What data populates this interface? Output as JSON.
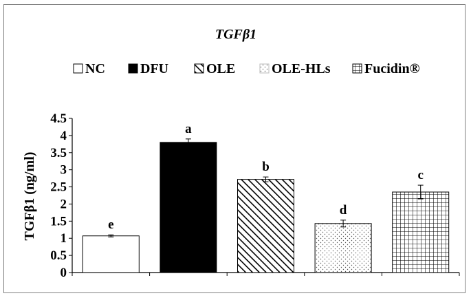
{
  "chart_data": {
    "type": "bar",
    "title": "TGFβ1",
    "ylabel": "TGFβ1 (ng/ml)",
    "xlabel": "",
    "ylim": [
      0,
      4.5
    ],
    "yticks": [
      "0",
      "0.5",
      "1",
      "1.5",
      "2",
      "2.5",
      "3",
      "3.5",
      "4",
      "4.5"
    ],
    "legend_position": "top",
    "categories": [
      "NC",
      "DFU",
      "OLE",
      "OLE-HLs",
      "Fucidin®"
    ],
    "values": [
      1.07,
      3.8,
      2.72,
      1.43,
      2.35
    ],
    "errors": [
      0.03,
      0.1,
      0.07,
      0.1,
      0.2
    ],
    "significance_letters": [
      "e",
      "a",
      "b",
      "d",
      "c"
    ],
    "patterns": [
      "white",
      "solid-black",
      "diagonal-hatch",
      "dots",
      "grid"
    ]
  }
}
